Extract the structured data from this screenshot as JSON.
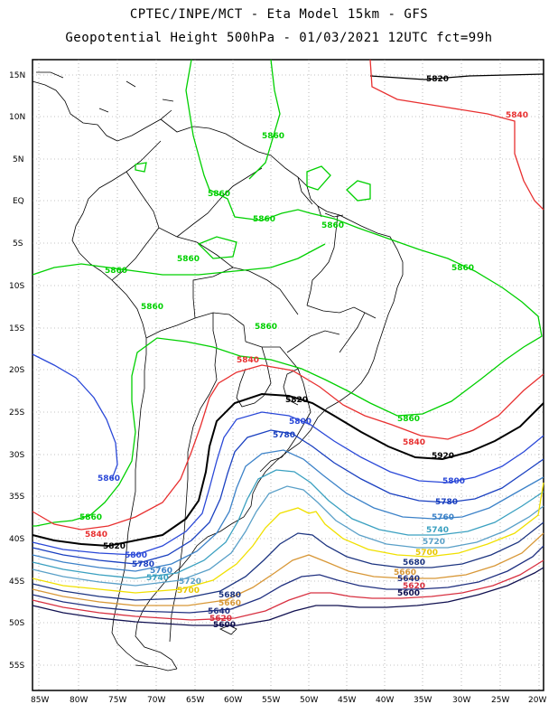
{
  "header": {
    "title_line1": "CPTEC/INPE/MCT -  Eta Model 15km - GFS",
    "title_line2": "Geopotential Height 500hPa - 01/03/2021 12UTC fct=99h"
  },
  "axes": {
    "lat_labels": [
      "15N",
      "10N",
      "5N",
      "EQ",
      "5S",
      "10S",
      "15S",
      "20S",
      "25S",
      "30S",
      "35S",
      "40S",
      "45S",
      "50S",
      "55S"
    ],
    "lon_labels": [
      "85W",
      "80W",
      "75W",
      "70W",
      "65W",
      "60W",
      "55W",
      "50W",
      "45W",
      "40W",
      "35W",
      "30W",
      "25W",
      "20W"
    ]
  },
  "colors": {
    "c5860": "#00d000",
    "c5840": "#e83030",
    "c5820": "#000000",
    "c5800": "#2a48d8",
    "c5780": "#1a40c0",
    "c5760": "#3c82c8",
    "c5740": "#3aa0c0",
    "c5720": "#5aa0c8",
    "c5700": "#f0e000",
    "c5680": "#1c3480",
    "c5660": "#d89838",
    "c5640": "#203080",
    "c5620": "#d83040",
    "c5600": "#101050"
  },
  "contour_labels": [
    {
      "text": "5820",
      "color": "#000000"
    },
    {
      "text": "5840",
      "color": "#e83030"
    },
    {
      "text": "5860",
      "color": "#00d000"
    },
    {
      "text": "5860",
      "color": "#00d000"
    },
    {
      "text": "5860",
      "color": "#00d000"
    },
    {
      "text": "5860",
      "color": "#00d000"
    },
    {
      "text": "5860",
      "color": "#00d000"
    },
    {
      "text": "5860",
      "color": "#00d000"
    },
    {
      "text": "5860",
      "color": "#00d000"
    },
    {
      "text": "5860",
      "color": "#00d000"
    },
    {
      "text": "5860",
      "color": "#00d000"
    },
    {
      "text": "5840",
      "color": "#e83030"
    },
    {
      "text": "5820",
      "color": "#000000"
    },
    {
      "text": "5800",
      "color": "#2a48d8"
    },
    {
      "text": "5780",
      "color": "#1a40c0"
    },
    {
      "text": "5860",
      "color": "#00d000"
    },
    {
      "text": "5840",
      "color": "#e83030"
    },
    {
      "text": "5920",
      "color": "#000000"
    },
    {
      "text": "5800",
      "color": "#2a48d8"
    },
    {
      "text": "5780",
      "color": "#1a40c0"
    },
    {
      "text": "5760",
      "color": "#3c82c8"
    },
    {
      "text": "5740",
      "color": "#3aa0c0"
    },
    {
      "text": "5720",
      "color": "#5aa0c8"
    },
    {
      "text": "5700",
      "color": "#e8c800"
    },
    {
      "text": "5680",
      "color": "#1c3480"
    },
    {
      "text": "5660",
      "color": "#d89838"
    },
    {
      "text": "5640",
      "color": "#203080"
    },
    {
      "text": "5620",
      "color": "#d83040"
    },
    {
      "text": "5600",
      "color": "#101050"
    },
    {
      "text": "5860",
      "color": "#00d000"
    },
    {
      "text": "5860",
      "color": "#2a48d8"
    },
    {
      "text": "5840",
      "color": "#e83030"
    },
    {
      "text": "5820",
      "color": "#000000"
    },
    {
      "text": "5800",
      "color": "#2a48d8"
    },
    {
      "text": "5780",
      "color": "#1a40c0"
    },
    {
      "text": "5760",
      "color": "#3c82c8"
    },
    {
      "text": "5740",
      "color": "#3aa0c0"
    },
    {
      "text": "5720",
      "color": "#5aa0c8"
    },
    {
      "text": "5700",
      "color": "#e8c800"
    },
    {
      "text": "5680",
      "color": "#1c3480"
    },
    {
      "text": "5660",
      "color": "#d89838"
    },
    {
      "text": "5640",
      "color": "#203080"
    },
    {
      "text": "5620",
      "color": "#d83040"
    },
    {
      "text": "5600",
      "color": "#101050"
    }
  ]
}
